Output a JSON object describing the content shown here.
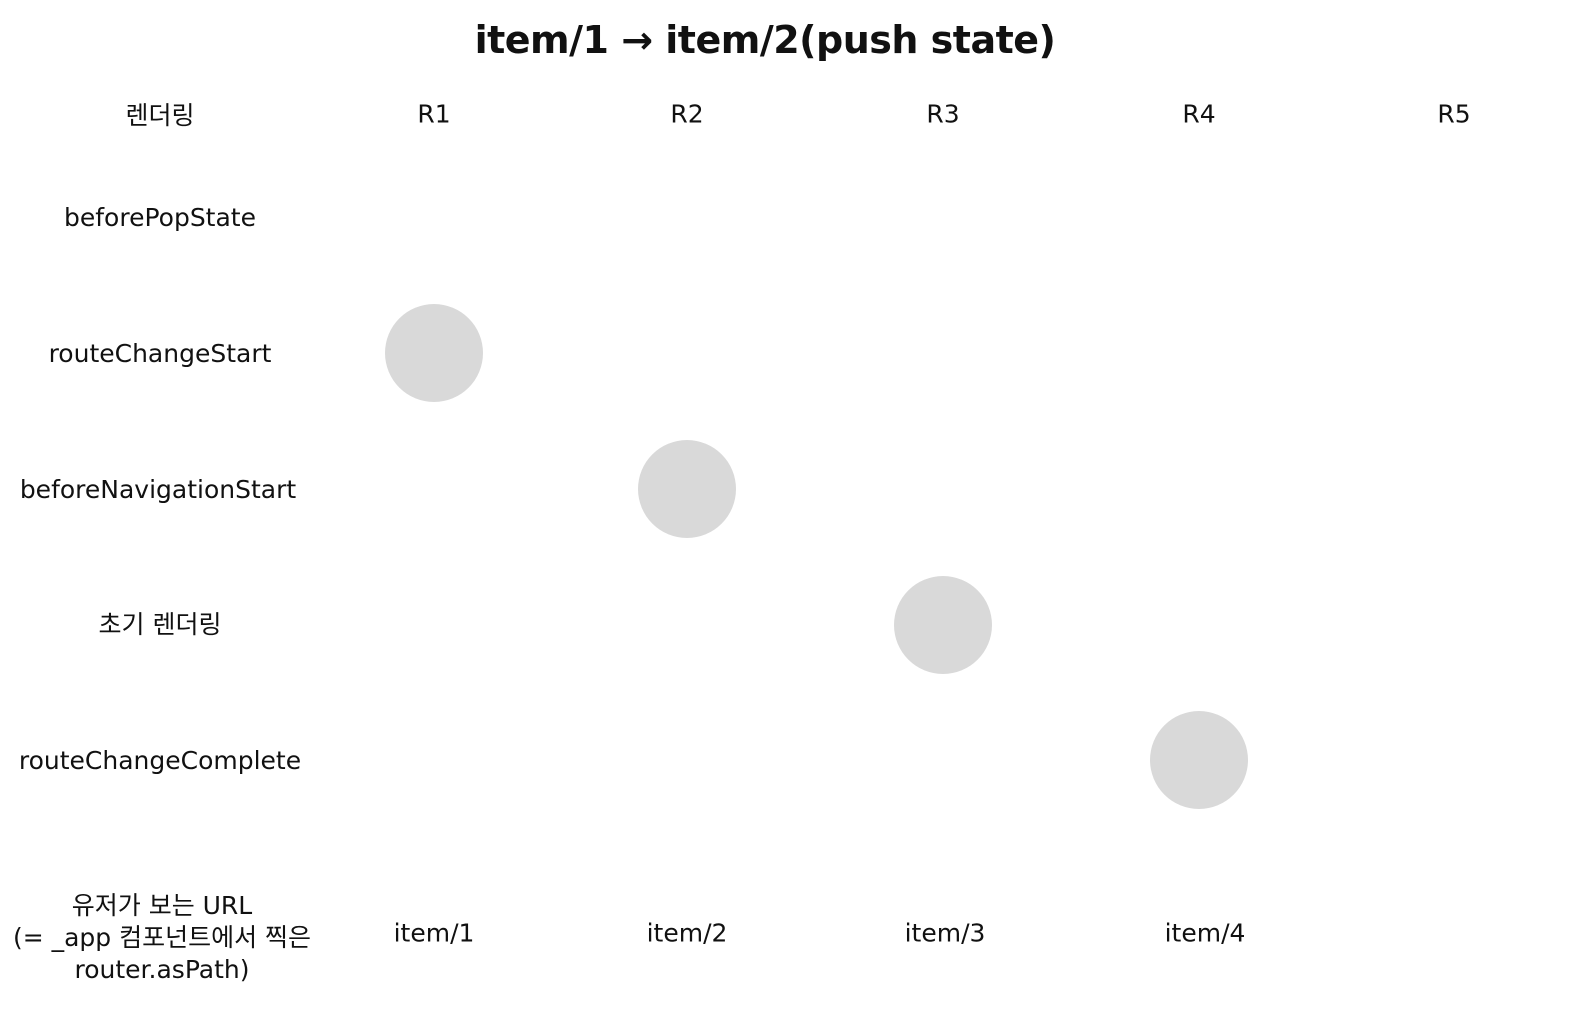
{
  "title": "item/1 → item/2(push state)",
  "columns": {
    "header_label": "렌더링",
    "labels": [
      "R1",
      "R2",
      "R3",
      "R4",
      "R5"
    ]
  },
  "rows": [
    "beforePopState",
    "routeChangeStart",
    "beforeNavigationStart",
    "초기 렌더링",
    "routeChangeComplete"
  ],
  "url_row": {
    "label_lines": [
      "유저가 보는 URL",
      "(= _app 컴포넌트에서 찍은",
      "router.asPath)"
    ],
    "values": [
      "item/1",
      "item/2",
      "item/3",
      "item/4"
    ]
  },
  "marker_color": "#d9d9d9",
  "markers": [
    {
      "row": "routeChangeStart",
      "column": "R1"
    },
    {
      "row": "beforeNavigationStart",
      "column": "R2"
    },
    {
      "row": "초기 렌더링",
      "column": "R3"
    },
    {
      "row": "routeChangeComplete",
      "column": "R4"
    }
  ]
}
